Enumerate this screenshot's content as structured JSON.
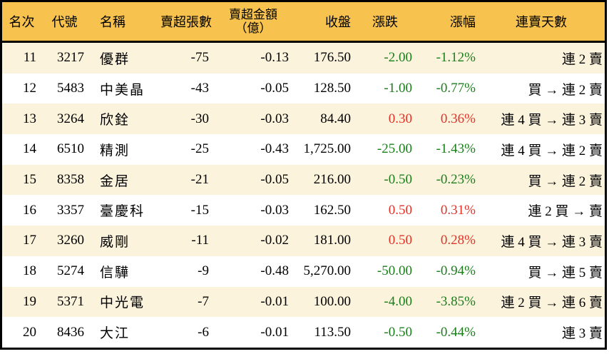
{
  "table": {
    "title": "institutional-sell-over-ranking",
    "columns": {
      "rank": {
        "label": "名次"
      },
      "code": {
        "label": "代號"
      },
      "name": {
        "label": "名稱"
      },
      "volume": {
        "label": "賣超張數"
      },
      "amount": {
        "label": "賣超金額\n（億）"
      },
      "close": {
        "label": "收盤"
      },
      "change": {
        "label": "漲跌"
      },
      "pct": {
        "label": "漲幅"
      },
      "streak": {
        "label": "連賣天數"
      }
    },
    "rows": [
      {
        "rank": "11",
        "code": "3217",
        "name": "優群",
        "volume": "-75",
        "amount": "-0.13",
        "close": "176.50",
        "change": "-2.00",
        "pct": "-1.12%",
        "trend": "down",
        "streak": "連 2 賣"
      },
      {
        "rank": "12",
        "code": "5483",
        "name": "中美晶",
        "volume": "-43",
        "amount": "-0.05",
        "close": "128.50",
        "change": "-1.00",
        "pct": "-0.77%",
        "trend": "down",
        "streak": "買 → 連 2 賣"
      },
      {
        "rank": "13",
        "code": "3264",
        "name": "欣銓",
        "volume": "-30",
        "amount": "-0.03",
        "close": "84.40",
        "change": "0.30",
        "pct": "0.36%",
        "trend": "up",
        "streak": "連 4 買 → 連 3 賣"
      },
      {
        "rank": "14",
        "code": "6510",
        "name": "精測",
        "volume": "-25",
        "amount": "-0.43",
        "close": "1,725.00",
        "change": "-25.00",
        "pct": "-1.43%",
        "trend": "down",
        "streak": "連 4 買 → 連 2 賣"
      },
      {
        "rank": "15",
        "code": "8358",
        "name": "金居",
        "volume": "-21",
        "amount": "-0.05",
        "close": "216.00",
        "change": "-0.50",
        "pct": "-0.23%",
        "trend": "down",
        "streak": "買 → 連 2 賣"
      },
      {
        "rank": "16",
        "code": "3357",
        "name": "臺慶科",
        "volume": "-15",
        "amount": "-0.03",
        "close": "162.50",
        "change": "0.50",
        "pct": "0.31%",
        "trend": "up",
        "streak": "連 2 買 → 賣"
      },
      {
        "rank": "17",
        "code": "3260",
        "name": "威剛",
        "volume": "-11",
        "amount": "-0.02",
        "close": "181.00",
        "change": "0.50",
        "pct": "0.28%",
        "trend": "up",
        "streak": "連 4 買 → 連 3 賣"
      },
      {
        "rank": "18",
        "code": "5274",
        "name": "信驊",
        "volume": "-9",
        "amount": "-0.48",
        "close": "5,270.00",
        "change": "-50.00",
        "pct": "-0.94%",
        "trend": "down",
        "streak": "買 → 連 5 賣"
      },
      {
        "rank": "19",
        "code": "5371",
        "name": "中光電",
        "volume": "-7",
        "amount": "-0.01",
        "close": "100.00",
        "change": "-4.00",
        "pct": "-3.85%",
        "trend": "down",
        "streak": "連 2 買 → 連 6 賣"
      },
      {
        "rank": "20",
        "code": "8436",
        "name": "大江",
        "volume": "-6",
        "amount": "-0.01",
        "close": "113.50",
        "change": "-0.50",
        "pct": "-0.44%",
        "trend": "down",
        "streak": "連 3 賣"
      }
    ]
  },
  "colors": {
    "header_bg": "#f7c24e",
    "row_alt_bg": "#fbf3dc",
    "row_bg": "#ffffff",
    "border": "#000000",
    "up": "#e53228",
    "down": "#1b7e1b",
    "text": "#000000"
  }
}
